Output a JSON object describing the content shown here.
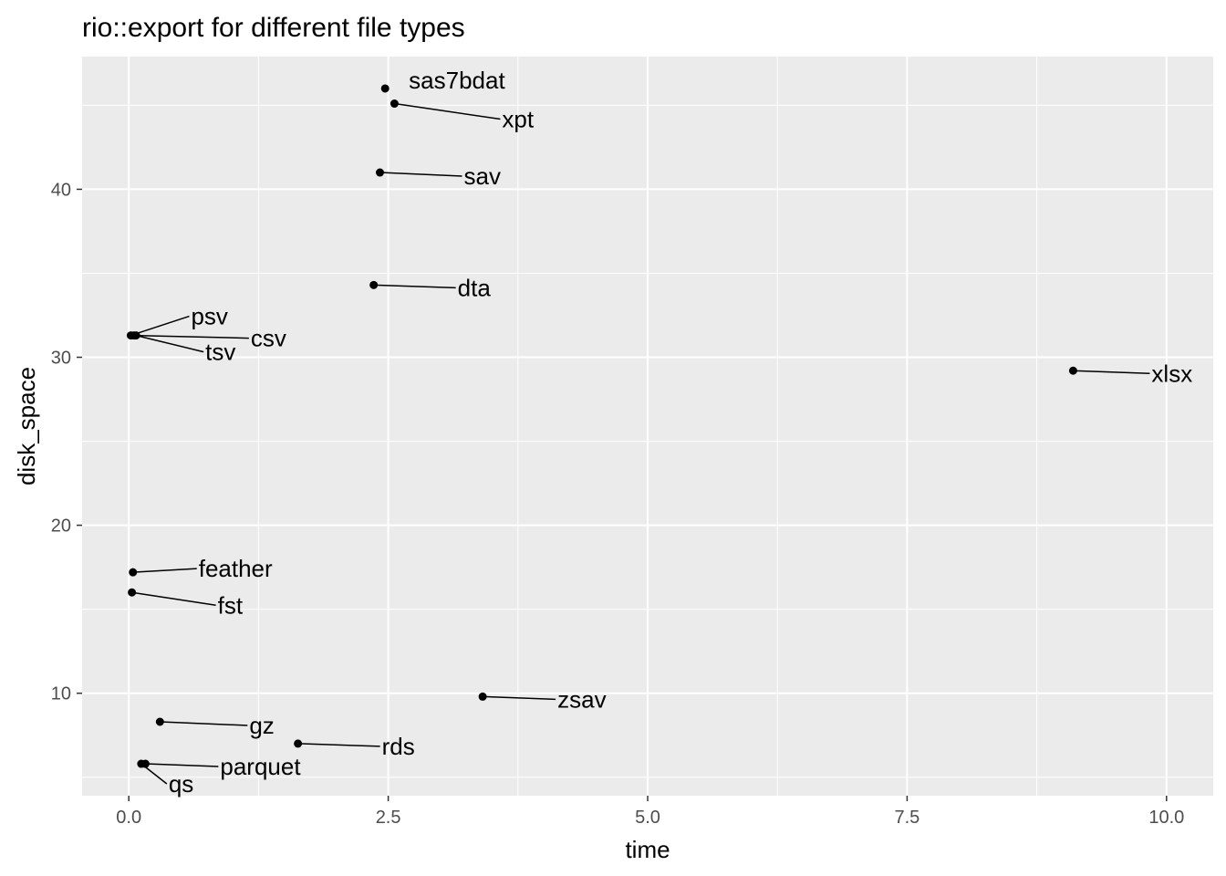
{
  "chart_data": {
    "type": "scatter",
    "title": "rio::export for different file types",
    "xlabel": "time",
    "ylabel": "disk_space",
    "xlim": [
      -0.45,
      10.45
    ],
    "ylim": [
      3.9,
      47.9
    ],
    "x_ticks": [
      0.0,
      2.5,
      5.0,
      7.5,
      10.0
    ],
    "x_tick_labels": [
      "0.0",
      "2.5",
      "5.0",
      "7.5",
      "10.0"
    ],
    "y_ticks": [
      10,
      20,
      30,
      40
    ],
    "y_tick_labels": [
      "10",
      "20",
      "30",
      "40"
    ],
    "grid": true,
    "panel_background": "#ebebeb",
    "grid_color": "#ffffff",
    "point_color": "#000000",
    "points": [
      {
        "label": "sas7bdat",
        "x": 2.47,
        "y": 46.0
      },
      {
        "label": "xpt",
        "x": 2.56,
        "y": 45.1
      },
      {
        "label": "sav",
        "x": 2.42,
        "y": 41.0
      },
      {
        "label": "dta",
        "x": 2.36,
        "y": 34.3
      },
      {
        "label": "psv",
        "x": 0.02,
        "y": 31.3
      },
      {
        "label": "csv",
        "x": 0.05,
        "y": 31.3
      },
      {
        "label": "tsv",
        "x": 0.07,
        "y": 31.3
      },
      {
        "label": "xlsx",
        "x": 9.1,
        "y": 29.2
      },
      {
        "label": "feather",
        "x": 0.04,
        "y": 17.2
      },
      {
        "label": "fst",
        "x": 0.03,
        "y": 16.0
      },
      {
        "label": "zsav",
        "x": 3.41,
        "y": 9.8
      },
      {
        "label": "gz",
        "x": 0.3,
        "y": 8.3
      },
      {
        "label": "rds",
        "x": 1.63,
        "y": 7.0
      },
      {
        "label": "parquet",
        "x": 0.16,
        "y": 5.8
      },
      {
        "label": "qs",
        "x": 0.12,
        "y": 5.8
      }
    ]
  }
}
